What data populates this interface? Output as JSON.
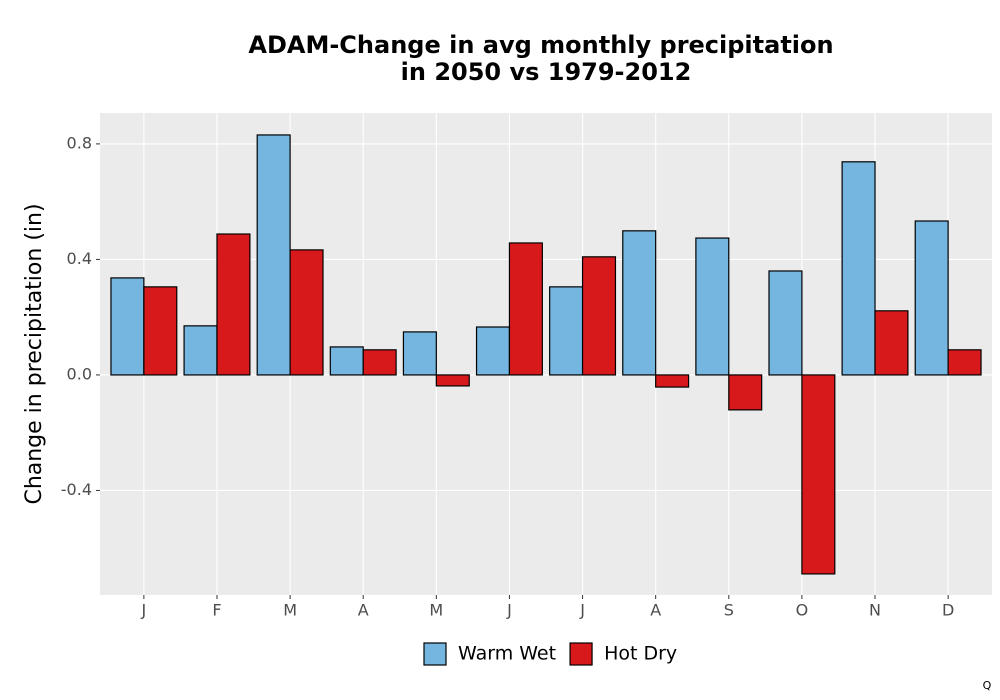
{
  "chart_data": {
    "type": "bar",
    "title": [
      "ADAM-Change in avg monthly precipitation",
      "in 2050 vs 1979-2012"
    ],
    "y_label": "Change in precipitation (in)",
    "caption": "Q",
    "categories": [
      "J",
      "F",
      "M",
      "A",
      "M",
      "J",
      "J",
      "A",
      "S",
      "O",
      "N",
      "D"
    ],
    "series": [
      {
        "name": "Warm Wet",
        "color": "#74b6e0",
        "values": [
          0.336,
          0.17,
          0.831,
          0.097,
          0.149,
          0.166,
          0.305,
          0.499,
          0.474,
          0.36,
          0.738,
          0.533
        ]
      },
      {
        "name": "Hot Dry",
        "color": "#d7191c",
        "values": [
          0.305,
          0.488,
          0.433,
          0.087,
          -0.038,
          0.457,
          0.409,
          -0.042,
          -0.121,
          -0.689,
          0.222,
          0.087
        ]
      }
    ],
    "ylim": [
      -0.762,
      0.907
    ],
    "yticks": [
      -0.4,
      {
        "value": 0,
        "label": "0.0"
      },
      0.4,
      0.8
    ],
    "grid": true,
    "legend": "bottom"
  }
}
